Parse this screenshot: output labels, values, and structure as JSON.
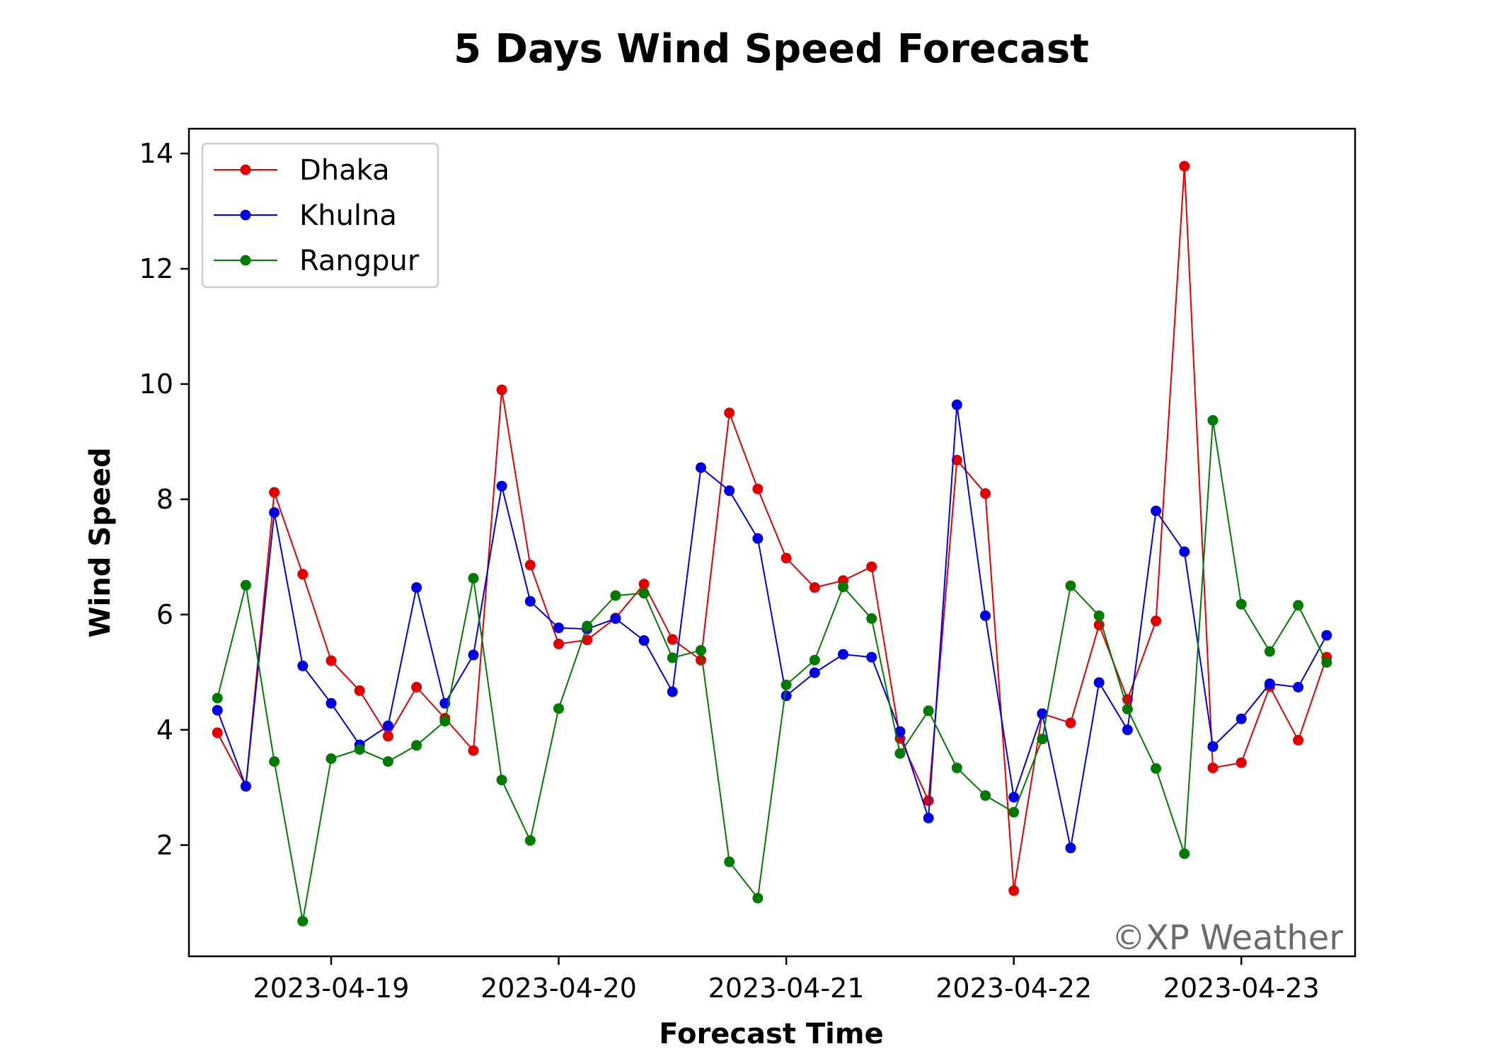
{
  "chart_data": {
    "type": "line",
    "title": "5 Days Wind Speed Forecast",
    "xlabel": "Forecast Time",
    "ylabel": "Wind Speed",
    "x_start": "2023-04-18T12:00",
    "x_step_hours": 3,
    "xlim": [
      "2023-04-18T09:00",
      "2023-04-23T12:00"
    ],
    "ylim": [
      0.07,
      14.43
    ],
    "x_ticks": [
      "2023-04-19",
      "2023-04-20",
      "2023-04-21",
      "2023-04-22",
      "2023-04-23"
    ],
    "y_ticks": [
      2,
      4,
      6,
      8,
      10,
      12,
      14
    ],
    "grid": false,
    "legend": "top-left",
    "watermark": "©XP Weather",
    "series": [
      {
        "name": "Dhaka",
        "color": "#e00000",
        "values": [
          3.95,
          3.02,
          8.12,
          6.7,
          5.2,
          4.68,
          3.89,
          4.74,
          4.2,
          3.64,
          9.9,
          6.86,
          5.49,
          5.56,
          5.94,
          6.53,
          5.57,
          5.21,
          9.5,
          8.18,
          6.98,
          6.47,
          6.59,
          6.83,
          3.85,
          2.77,
          8.68,
          8.1,
          1.21,
          4.28,
          4.12,
          5.82,
          4.53,
          5.89,
          13.78,
          3.34,
          3.43,
          4.75,
          3.82,
          5.26
        ]
      },
      {
        "name": "Khulna",
        "color": "#0000e0",
        "values": [
          4.34,
          3.02,
          7.77,
          5.11,
          4.46,
          3.74,
          4.07,
          6.47,
          4.46,
          5.3,
          8.23,
          6.23,
          5.77,
          5.75,
          5.93,
          5.55,
          4.66,
          8.55,
          8.15,
          7.32,
          4.59,
          4.99,
          5.31,
          5.26,
          3.97,
          2.47,
          9.64,
          5.98,
          2.83,
          4.28,
          1.95,
          4.82,
          4.0,
          7.8,
          7.09,
          3.71,
          4.19,
          4.8,
          4.74,
          5.64
        ]
      },
      {
        "name": "Rangpur",
        "color": "#007a00",
        "values": [
          4.55,
          6.51,
          3.45,
          0.68,
          3.5,
          3.66,
          3.45,
          3.73,
          4.15,
          6.63,
          3.13,
          2.08,
          4.37,
          5.8,
          6.33,
          6.37,
          5.25,
          5.38,
          1.71,
          1.08,
          4.78,
          5.21,
          6.48,
          5.93,
          3.59,
          4.33,
          3.34,
          2.86,
          2.57,
          3.84,
          6.5,
          5.98,
          4.36,
          3.33,
          1.85,
          9.37,
          6.18,
          5.36,
          6.16,
          5.17
        ]
      }
    ]
  }
}
